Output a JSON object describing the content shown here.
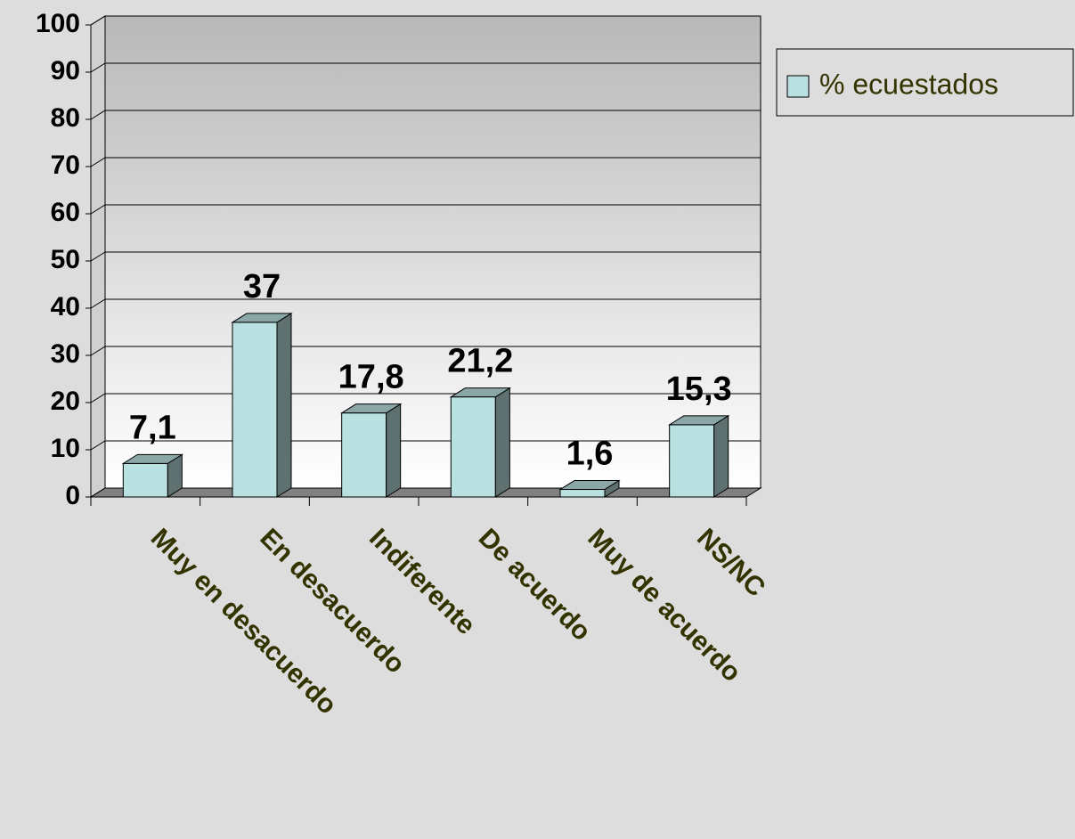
{
  "chart_data": {
    "type": "bar3d",
    "categories": [
      "Muy en desacuerdo",
      "En desacuerdo",
      "Indiferente",
      "De acuerdo",
      "Muy de acuerdo",
      "NS/NC"
    ],
    "series": [
      {
        "name": "% ecuestados",
        "color": "#b9e1e1",
        "values": [
          7.1,
          37,
          17.8,
          21.2,
          1.6,
          15.3
        ],
        "value_labels": [
          "7,1",
          "37",
          "17,8",
          "21,2",
          "1,6",
          "15,3"
        ]
      }
    ],
    "ylim": [
      0,
      100
    ],
    "yticks": [
      0,
      10,
      20,
      30,
      40,
      50,
      60,
      70,
      80,
      90,
      100
    ],
    "grid": true,
    "legend": "right"
  }
}
